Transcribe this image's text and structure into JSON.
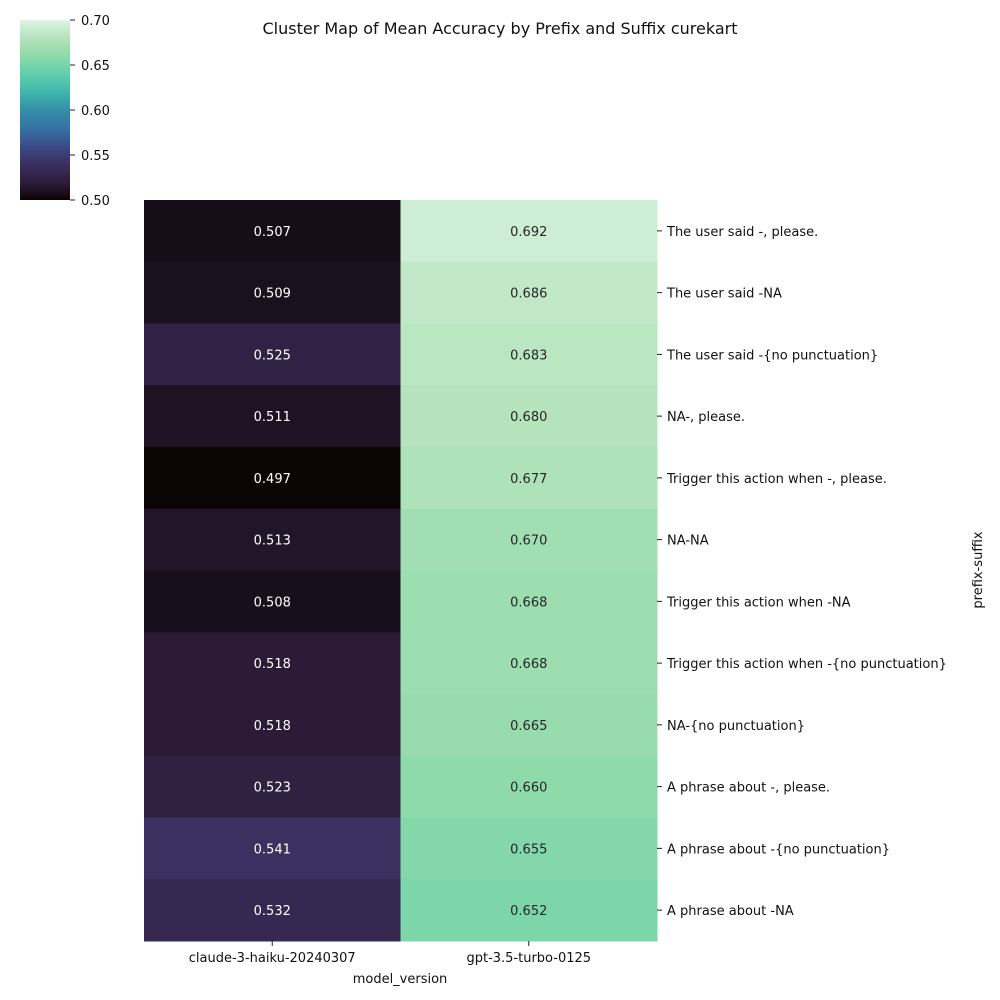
{
  "chart_data": {
    "type": "heatmap",
    "title": "Cluster Map of Mean Accuracy by Prefix and Suffix curekart",
    "xlabel": "model_version",
    "ylabel": "prefix-suffix",
    "columns": [
      "claude-3-haiku-20240307",
      "gpt-3.5-turbo-0125"
    ],
    "rows": [
      "The user said -, please.",
      "The user said -NA",
      "The user said -{no punctuation}",
      "NA-, please.",
      "Trigger this action when -, please.",
      "NA-NA",
      "Trigger this action when -NA",
      "Trigger this action when -{no punctuation}",
      "NA-{no punctuation}",
      "A phrase about -, please.",
      "A phrase about -{no punctuation}",
      "A phrase about -NA"
    ],
    "values": [
      [
        0.507,
        0.692
      ],
      [
        0.509,
        0.686
      ],
      [
        0.525,
        0.683
      ],
      [
        0.511,
        0.68
      ],
      [
        0.497,
        0.677
      ],
      [
        0.513,
        0.67
      ],
      [
        0.508,
        0.668
      ],
      [
        0.518,
        0.668
      ],
      [
        0.518,
        0.665
      ],
      [
        0.523,
        0.66
      ],
      [
        0.541,
        0.655
      ],
      [
        0.532,
        0.652
      ]
    ],
    "labels": [
      [
        "0.507",
        "0.692"
      ],
      [
        "0.509",
        "0.686"
      ],
      [
        "0.525",
        "0.683"
      ],
      [
        "0.511",
        "0.680"
      ],
      [
        "0.497",
        "0.677"
      ],
      [
        "0.513",
        "0.670"
      ],
      [
        "0.508",
        "0.668"
      ],
      [
        "0.518",
        "0.668"
      ],
      [
        "0.518",
        "0.665"
      ],
      [
        "0.523",
        "0.660"
      ],
      [
        "0.541",
        "0.655"
      ],
      [
        "0.532",
        "0.652"
      ]
    ],
    "colorbar": {
      "range": [
        0.5,
        0.7
      ],
      "ticks": [
        "0.50",
        "0.55",
        "0.60",
        "0.65",
        "0.70"
      ],
      "tick_values": [
        0.5,
        0.55,
        0.6,
        0.65,
        0.7
      ],
      "colormap": "mako",
      "stops": [
        "#0b0405",
        "#2e1e3c",
        "#3b2f5e",
        "#3c4c88",
        "#3473a4",
        "#348fa7",
        "#40b7ad",
        "#60cfac",
        "#8edaa9",
        "#b4e3bc",
        "#def5e5"
      ]
    }
  }
}
